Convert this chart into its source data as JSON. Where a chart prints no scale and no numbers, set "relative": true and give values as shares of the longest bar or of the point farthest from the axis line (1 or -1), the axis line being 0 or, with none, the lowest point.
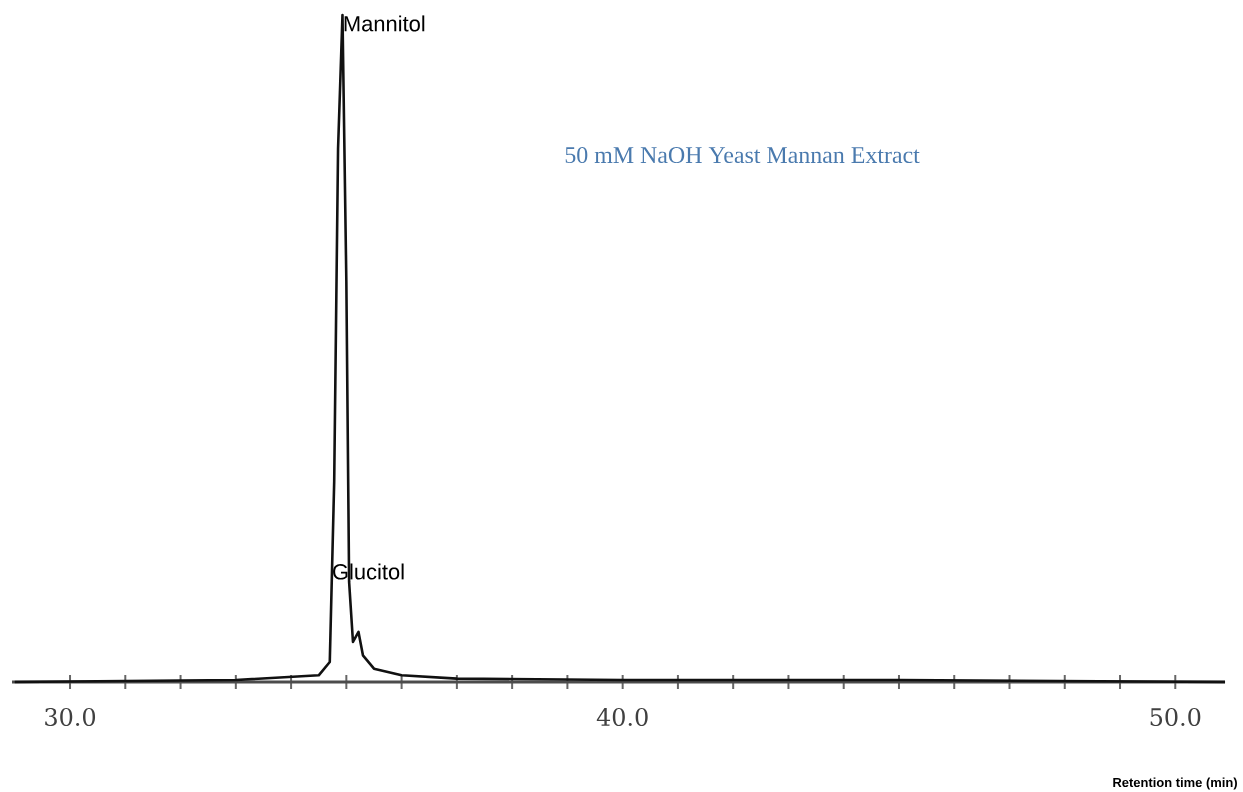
{
  "chart_data": {
    "type": "line",
    "relative": true,
    "color": "#111111",
    "x": [
      29.0,
      33.0,
      34.5,
      34.7,
      34.78,
      34.85,
      34.93,
      35.0,
      35.05,
      35.12,
      35.22,
      35.3,
      35.5,
      36.0,
      37.0,
      40.0,
      45.0,
      50.9
    ],
    "values": [
      0,
      0.003,
      0.01,
      0.03,
      0.3,
      0.8,
      1.0,
      0.6,
      0.15,
      0.06,
      0.075,
      0.04,
      0.02,
      0.01,
      0.005,
      0.003,
      0.003,
      0
    ],
    "xlim": [
      28.95,
      50.9
    ],
    "xticks": [
      {
        "value": 30,
        "label": "30.0"
      },
      {
        "value": 31,
        "label": null
      },
      {
        "value": 32,
        "label": null
      },
      {
        "value": 33,
        "label": null
      },
      {
        "value": 34,
        "label": null
      },
      {
        "value": 35,
        "label": null
      },
      {
        "value": 36,
        "label": null
      },
      {
        "value": 37,
        "label": null
      },
      {
        "value": 38,
        "label": null
      },
      {
        "value": 39,
        "label": null
      },
      {
        "value": 40,
        "label": "40.0"
      },
      {
        "value": 41,
        "label": null
      },
      {
        "value": 42,
        "label": null
      },
      {
        "value": 43,
        "label": null
      },
      {
        "value": 44,
        "label": null
      },
      {
        "value": 45,
        "label": null
      },
      {
        "value": 46,
        "label": null
      },
      {
        "value": 47,
        "label": null
      },
      {
        "value": 48,
        "label": null
      },
      {
        "value": 49,
        "label": null
      },
      {
        "value": 50,
        "label": "50.0"
      }
    ],
    "xlabel": "Retention time (min)",
    "grid": false,
    "marker": "none",
    "line_style": "solid",
    "annotations": [
      {
        "text": "Mannitol",
        "x": 34.93,
        "y": 1.0
      },
      {
        "text": "Glucitol",
        "x": 35.22,
        "y": 0.075
      },
      "50 mM NaOH Yeast Mannan Extract"
    ]
  }
}
